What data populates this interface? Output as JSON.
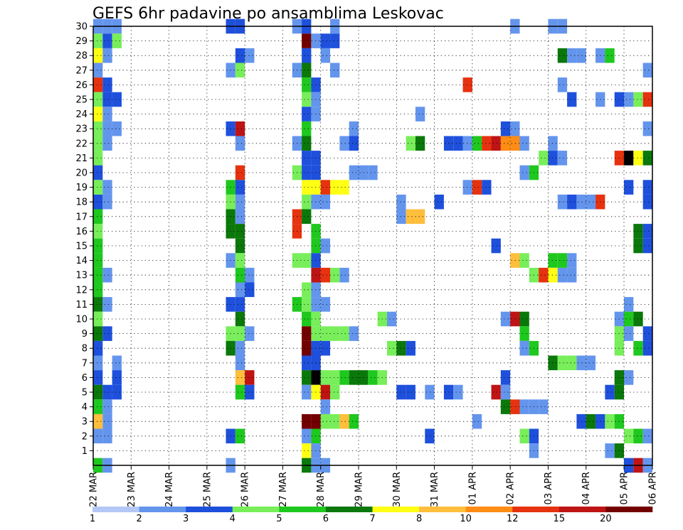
{
  "chart_data": {
    "type": "heatmap",
    "title": "GEFS 6hr padavine po ansamblima Leskovac",
    "y": {
      "min": 0,
      "max": 30,
      "ticks": [
        1,
        2,
        3,
        4,
        5,
        6,
        7,
        8,
        9,
        10,
        11,
        12,
        13,
        14,
        15,
        16,
        17,
        18,
        19,
        20,
        21,
        22,
        23,
        24,
        25,
        26,
        27,
        28,
        29,
        30
      ]
    },
    "x": {
      "steps_per_day": 4,
      "total_steps": 59,
      "ticks": [
        {
          "step": 0,
          "label": "22 MAR"
        },
        {
          "step": 4,
          "label": "23 MAR"
        },
        {
          "step": 8,
          "label": "24 MAR"
        },
        {
          "step": 12,
          "label": "25 MAR"
        },
        {
          "step": 16,
          "label": "26 MAR"
        },
        {
          "step": 20,
          "label": "27 MAR"
        },
        {
          "step": 24,
          "label": "28 MAR"
        },
        {
          "step": 28,
          "label": "29 MAR"
        },
        {
          "step": 32,
          "label": "30 MAR"
        },
        {
          "step": 36,
          "label": "31 MAR"
        },
        {
          "step": 40,
          "label": "01 APR"
        },
        {
          "step": 44,
          "label": "02 APR"
        },
        {
          "step": 48,
          "label": "03 APR"
        },
        {
          "step": 52,
          "label": "04 APR"
        },
        {
          "step": 56,
          "label": "05 APR"
        },
        {
          "step": 59,
          "label": "06 APR"
        }
      ]
    },
    "grid": "dotted",
    "colorbar": {
      "thresholds": [
        1,
        2,
        3,
        4,
        5,
        6,
        7,
        8,
        10,
        12,
        15,
        20
      ],
      "labels": [
        "1",
        "2",
        "3",
        "4",
        "5",
        "6",
        "7",
        "8",
        "10",
        "12",
        "15",
        "20"
      ],
      "colors": [
        "#b4c8f5",
        "#6495ed",
        "#1e50dc",
        "#78ee5a",
        "#1ec81e",
        "#0a780a",
        "#ffff14",
        "#ffbe3c",
        "#ff8c14",
        "#e6320f",
        "#be1414",
        "#730000"
      ]
    },
    "cells": [
      [
        0,
        30,
        1
      ],
      [
        1,
        30,
        1
      ],
      [
        2,
        30,
        1
      ],
      [
        14,
        30,
        2
      ],
      [
        15,
        30,
        2
      ],
      [
        21,
        30,
        1
      ],
      [
        22,
        30,
        2
      ],
      [
        25,
        30,
        1
      ],
      [
        44,
        30,
        1
      ],
      [
        48,
        30,
        1
      ],
      [
        49,
        30,
        1
      ],
      [
        0,
        29,
        3
      ],
      [
        1,
        29,
        2
      ],
      [
        2,
        29,
        3
      ],
      [
        22,
        29,
        11
      ],
      [
        23,
        29,
        1
      ],
      [
        24,
        29,
        2
      ],
      [
        25,
        29,
        2
      ],
      [
        59,
        29,
        5
      ],
      [
        0,
        28,
        6
      ],
      [
        1,
        28,
        1
      ],
      [
        15,
        28,
        2
      ],
      [
        16,
        28,
        1
      ],
      [
        22,
        28,
        2
      ],
      [
        24,
        28,
        1
      ],
      [
        49,
        28,
        5
      ],
      [
        50,
        28,
        1
      ],
      [
        51,
        28,
        1
      ],
      [
        53,
        28,
        1
      ],
      [
        54,
        28,
        4
      ],
      [
        0,
        27,
        1
      ],
      [
        14,
        27,
        1
      ],
      [
        15,
        27,
        3
      ],
      [
        21,
        27,
        1
      ],
      [
        22,
        27,
        5
      ],
      [
        25,
        27,
        1
      ],
      [
        58,
        27,
        1
      ],
      [
        59,
        27,
        1
      ],
      [
        0,
        26,
        9
      ],
      [
        1,
        26,
        2
      ],
      [
        22,
        26,
        4
      ],
      [
        23,
        26,
        2
      ],
      [
        39,
        26,
        9
      ],
      [
        49,
        26,
        1
      ],
      [
        0,
        25,
        3
      ],
      [
        1,
        25,
        2
      ],
      [
        2,
        25,
        2
      ],
      [
        22,
        25,
        3
      ],
      [
        23,
        25,
        1
      ],
      [
        50,
        25,
        2
      ],
      [
        53,
        25,
        1
      ],
      [
        55,
        25,
        2
      ],
      [
        56,
        25,
        1
      ],
      [
        57,
        25,
        3
      ],
      [
        58,
        25,
        9
      ],
      [
        59,
        25,
        9
      ],
      [
        0,
        24,
        6
      ],
      [
        1,
        24,
        1
      ],
      [
        22,
        24,
        2
      ],
      [
        23,
        24,
        1
      ],
      [
        34,
        24,
        1
      ],
      [
        0,
        23,
        3
      ],
      [
        1,
        23,
        1
      ],
      [
        2,
        23,
        1
      ],
      [
        14,
        23,
        2
      ],
      [
        15,
        23,
        10
      ],
      [
        22,
        23,
        4
      ],
      [
        27,
        23,
        1
      ],
      [
        43,
        23,
        2
      ],
      [
        44,
        23,
        1
      ],
      [
        58,
        23,
        1
      ],
      [
        59,
        23,
        1
      ],
      [
        0,
        22,
        3
      ],
      [
        1,
        22,
        1
      ],
      [
        15,
        22,
        1
      ],
      [
        21,
        22,
        1
      ],
      [
        22,
        22,
        5
      ],
      [
        26,
        22,
        1
      ],
      [
        27,
        22,
        2
      ],
      [
        33,
        22,
        3
      ],
      [
        34,
        22,
        5
      ],
      [
        37,
        22,
        2
      ],
      [
        38,
        22,
        2
      ],
      [
        39,
        22,
        1
      ],
      [
        40,
        22,
        4
      ],
      [
        41,
        22,
        9
      ],
      [
        42,
        22,
        10
      ],
      [
        43,
        22,
        8
      ],
      [
        44,
        22,
        8
      ],
      [
        45,
        22,
        1
      ],
      [
        48,
        22,
        1
      ],
      [
        0,
        21,
        3
      ],
      [
        22,
        21,
        2
      ],
      [
        23,
        21,
        2
      ],
      [
        47,
        21,
        3
      ],
      [
        48,
        21,
        2
      ],
      [
        49,
        21,
        1
      ],
      [
        55,
        21,
        9
      ],
      [
        56,
        21,
        12
      ],
      [
        57,
        21,
        6
      ],
      [
        58,
        21,
        5
      ],
      [
        0,
        20,
        2
      ],
      [
        15,
        20,
        9
      ],
      [
        21,
        20,
        3
      ],
      [
        22,
        20,
        2
      ],
      [
        23,
        20,
        2
      ],
      [
        27,
        20,
        1
      ],
      [
        28,
        20,
        1
      ],
      [
        29,
        20,
        1
      ],
      [
        45,
        20,
        1
      ],
      [
        46,
        20,
        4
      ],
      [
        0,
        19,
        3
      ],
      [
        1,
        19,
        1
      ],
      [
        14,
        19,
        4
      ],
      [
        15,
        19,
        2
      ],
      [
        22,
        19,
        6
      ],
      [
        23,
        19,
        6
      ],
      [
        24,
        19,
        9
      ],
      [
        25,
        19,
        6
      ],
      [
        26,
        19,
        6
      ],
      [
        39,
        19,
        1
      ],
      [
        40,
        19,
        9
      ],
      [
        41,
        19,
        2
      ],
      [
        56,
        19,
        2
      ],
      [
        58,
        19,
        2
      ],
      [
        59,
        19,
        6
      ],
      [
        0,
        18,
        2
      ],
      [
        1,
        18,
        1
      ],
      [
        14,
        18,
        3
      ],
      [
        15,
        18,
        1
      ],
      [
        22,
        18,
        3
      ],
      [
        23,
        18,
        1
      ],
      [
        24,
        18,
        1
      ],
      [
        32,
        18,
        1
      ],
      [
        36,
        18,
        2
      ],
      [
        49,
        18,
        1
      ],
      [
        50,
        18,
        2
      ],
      [
        51,
        18,
        1
      ],
      [
        52,
        18,
        1
      ],
      [
        53,
        18,
        9
      ],
      [
        58,
        18,
        2
      ],
      [
        59,
        18,
        4
      ],
      [
        0,
        17,
        4
      ],
      [
        14,
        17,
        5
      ],
      [
        15,
        17,
        1
      ],
      [
        21,
        17,
        9
      ],
      [
        22,
        17,
        5
      ],
      [
        32,
        17,
        1
      ],
      [
        33,
        17,
        7
      ],
      [
        34,
        17,
        7
      ],
      [
        0,
        16,
        3
      ],
      [
        14,
        16,
        5
      ],
      [
        15,
        16,
        5
      ],
      [
        21,
        16,
        9
      ],
      [
        23,
        16,
        4
      ],
      [
        57,
        16,
        5
      ],
      [
        58,
        16,
        2
      ],
      [
        59,
        16,
        4
      ],
      [
        0,
        15,
        4
      ],
      [
        15,
        15,
        5
      ],
      [
        23,
        15,
        4
      ],
      [
        24,
        15,
        1
      ],
      [
        42,
        15,
        2
      ],
      [
        57,
        15,
        5
      ],
      [
        58,
        15,
        2
      ],
      [
        59,
        15,
        2
      ],
      [
        0,
        14,
        4
      ],
      [
        14,
        14,
        1
      ],
      [
        15,
        14,
        3
      ],
      [
        21,
        14,
        3
      ],
      [
        22,
        14,
        3
      ],
      [
        23,
        14,
        2
      ],
      [
        44,
        14,
        7
      ],
      [
        45,
        14,
        3
      ],
      [
        48,
        14,
        4
      ],
      [
        49,
        14,
        4
      ],
      [
        50,
        14,
        1
      ],
      [
        0,
        13,
        4
      ],
      [
        1,
        13,
        1
      ],
      [
        15,
        13,
        4
      ],
      [
        16,
        13,
        1
      ],
      [
        23,
        13,
        10
      ],
      [
        24,
        13,
        9
      ],
      [
        25,
        13,
        3
      ],
      [
        26,
        13,
        1
      ],
      [
        46,
        13,
        3
      ],
      [
        47,
        13,
        9
      ],
      [
        48,
        13,
        6
      ],
      [
        49,
        13,
        1
      ],
      [
        50,
        13,
        1
      ],
      [
        0,
        12,
        4
      ],
      [
        15,
        12,
        1
      ],
      [
        16,
        12,
        2
      ],
      [
        22,
        12,
        3
      ],
      [
        23,
        12,
        1
      ],
      [
        0,
        11,
        5
      ],
      [
        1,
        11,
        1
      ],
      [
        14,
        11,
        2
      ],
      [
        15,
        11,
        2
      ],
      [
        21,
        11,
        4
      ],
      [
        22,
        11,
        3
      ],
      [
        23,
        11,
        1
      ],
      [
        24,
        11,
        1
      ],
      [
        56,
        11,
        1
      ],
      [
        59,
        11,
        7
      ],
      [
        0,
        10,
        3
      ],
      [
        15,
        10,
        5
      ],
      [
        22,
        10,
        4
      ],
      [
        23,
        10,
        3
      ],
      [
        30,
        10,
        3
      ],
      [
        31,
        10,
        1
      ],
      [
        43,
        10,
        1
      ],
      [
        44,
        10,
        10
      ],
      [
        45,
        10,
        5
      ],
      [
        55,
        10,
        1
      ],
      [
        56,
        10,
        4
      ],
      [
        57,
        10,
        5
      ],
      [
        59,
        10,
        3
      ],
      [
        0,
        9,
        5
      ],
      [
        1,
        9,
        2
      ],
      [
        14,
        9,
        3
      ],
      [
        15,
        9,
        3
      ],
      [
        16,
        9,
        1
      ],
      [
        22,
        9,
        11
      ],
      [
        23,
        9,
        3
      ],
      [
        24,
        9,
        3
      ],
      [
        25,
        9,
        3
      ],
      [
        26,
        9,
        3
      ],
      [
        27,
        9,
        1
      ],
      [
        45,
        9,
        4
      ],
      [
        55,
        9,
        3
      ],
      [
        56,
        9,
        1
      ],
      [
        58,
        9,
        2
      ],
      [
        59,
        9,
        2
      ],
      [
        0,
        8,
        2
      ],
      [
        14,
        8,
        5
      ],
      [
        15,
        8,
        1
      ],
      [
        22,
        8,
        11
      ],
      [
        23,
        8,
        2
      ],
      [
        24,
        8,
        2
      ],
      [
        31,
        8,
        3
      ],
      [
        32,
        8,
        5
      ],
      [
        33,
        8,
        2
      ],
      [
        45,
        8,
        1
      ],
      [
        46,
        8,
        4
      ],
      [
        55,
        8,
        3
      ],
      [
        57,
        8,
        4
      ],
      [
        58,
        8,
        2
      ],
      [
        59,
        8,
        2
      ],
      [
        0,
        7,
        1
      ],
      [
        2,
        7,
        1
      ],
      [
        15,
        7,
        1
      ],
      [
        22,
        7,
        2
      ],
      [
        23,
        7,
        2
      ],
      [
        48,
        7,
        5
      ],
      [
        49,
        7,
        3
      ],
      [
        50,
        7,
        3
      ],
      [
        51,
        7,
        1
      ],
      [
        52,
        7,
        1
      ],
      [
        0,
        6,
        2
      ],
      [
        2,
        6,
        2
      ],
      [
        15,
        6,
        7
      ],
      [
        16,
        6,
        10
      ],
      [
        22,
        6,
        5
      ],
      [
        23,
        6,
        12
      ],
      [
        24,
        6,
        3
      ],
      [
        25,
        6,
        3
      ],
      [
        26,
        6,
        4
      ],
      [
        27,
        6,
        5
      ],
      [
        28,
        6,
        5
      ],
      [
        29,
        6,
        4
      ],
      [
        30,
        6,
        3
      ],
      [
        43,
        6,
        2
      ],
      [
        55,
        6,
        5
      ],
      [
        56,
        6,
        1
      ],
      [
        0,
        5,
        5
      ],
      [
        1,
        5,
        2
      ],
      [
        2,
        5,
        2
      ],
      [
        15,
        5,
        4
      ],
      [
        16,
        5,
        2
      ],
      [
        22,
        5,
        1
      ],
      [
        23,
        5,
        6
      ],
      [
        24,
        5,
        10
      ],
      [
        25,
        5,
        3
      ],
      [
        32,
        5,
        2
      ],
      [
        33,
        5,
        2
      ],
      [
        35,
        5,
        1
      ],
      [
        37,
        5,
        2
      ],
      [
        38,
        5,
        1
      ],
      [
        42,
        5,
        10
      ],
      [
        43,
        5,
        1
      ],
      [
        54,
        5,
        2
      ],
      [
        55,
        5,
        5
      ],
      [
        0,
        4,
        4
      ],
      [
        1,
        4,
        1
      ],
      [
        24,
        4,
        1
      ],
      [
        43,
        4,
        5
      ],
      [
        44,
        4,
        9
      ],
      [
        45,
        4,
        1
      ],
      [
        46,
        4,
        1
      ],
      [
        47,
        4,
        1
      ],
      [
        0,
        3,
        7
      ],
      [
        1,
        3,
        1
      ],
      [
        22,
        3,
        11
      ],
      [
        23,
        3,
        11
      ],
      [
        24,
        3,
        3
      ],
      [
        25,
        3,
        3
      ],
      [
        26,
        3,
        7
      ],
      [
        27,
        3,
        4
      ],
      [
        40,
        3,
        1
      ],
      [
        51,
        3,
        2
      ],
      [
        52,
        3,
        5
      ],
      [
        53,
        3,
        2
      ],
      [
        54,
        3,
        3
      ],
      [
        55,
        3,
        4
      ],
      [
        0,
        2,
        1
      ],
      [
        1,
        2,
        1
      ],
      [
        14,
        2,
        2
      ],
      [
        15,
        2,
        4
      ],
      [
        22,
        2,
        1
      ],
      [
        23,
        2,
        4
      ],
      [
        35,
        2,
        2
      ],
      [
        45,
        2,
        3
      ],
      [
        46,
        2,
        2
      ],
      [
        56,
        2,
        3
      ],
      [
        57,
        2,
        4
      ],
      [
        58,
        2,
        1
      ],
      [
        59,
        2,
        2
      ],
      [
        22,
        1,
        6
      ],
      [
        23,
        1,
        1
      ],
      [
        46,
        1,
        1
      ],
      [
        54,
        1,
        1
      ],
      [
        55,
        1,
        5
      ],
      [
        0,
        0,
        4
      ],
      [
        1,
        0,
        1
      ],
      [
        14,
        0,
        1
      ],
      [
        22,
        0,
        5
      ],
      [
        23,
        0,
        1
      ],
      [
        24,
        0,
        1
      ],
      [
        56,
        0,
        2
      ],
      [
        57,
        0,
        10
      ],
      [
        58,
        0,
        1
      ]
    ]
  }
}
